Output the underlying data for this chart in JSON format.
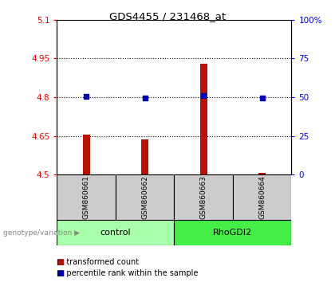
{
  "title": "GDS4455 / 231468_at",
  "samples": [
    "GSM860661",
    "GSM860662",
    "GSM860663",
    "GSM860664"
  ],
  "bar_values": [
    4.655,
    4.638,
    4.93,
    4.508
  ],
  "bar_base": 4.5,
  "percentile_values": [
    4.805,
    4.798,
    4.807,
    4.797
  ],
  "ylim_left": [
    4.5,
    5.1
  ],
  "ylim_right": [
    0,
    100
  ],
  "yticks_left": [
    4.5,
    4.65,
    4.8,
    4.95,
    5.1
  ],
  "ytick_labels_left": [
    "4.5",
    "4.65",
    "4.8",
    "4.95",
    "5.1"
  ],
  "yticks_right": [
    0,
    25,
    50,
    75,
    100
  ],
  "ytick_labels_right": [
    "0",
    "25",
    "50",
    "75",
    "100%"
  ],
  "groups": [
    {
      "label": "control",
      "samples": [
        0,
        1
      ],
      "color": "#aaffaa"
    },
    {
      "label": "RhoGDI2",
      "samples": [
        2,
        3
      ],
      "color": "#44ee44"
    }
  ],
  "bar_color": "#bb1100",
  "dot_color": "#0000bb",
  "bar_width": 0.12,
  "background_color": "#ffffff",
  "label_area_color": "#cccccc",
  "legend_red_label": "transformed count",
  "legend_blue_label": "percentile rank within the sample",
  "genotype_label": "genotype/variation"
}
